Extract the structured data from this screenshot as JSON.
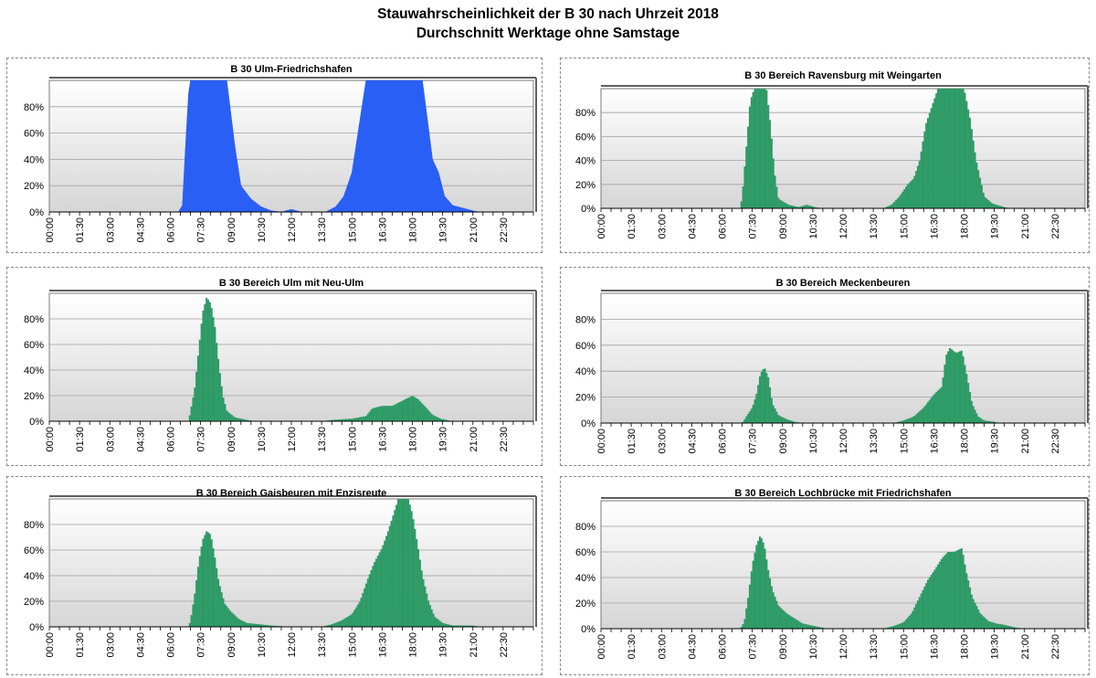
{
  "title": {
    "line1": "Stauwahrscheinlichkeit der B 30 nach Uhrzeit 2018",
    "line2": "Durchschnitt Werktage ohne Samstage"
  },
  "colors": {
    "blue": "#2a5ff5",
    "green": "#2e9b66",
    "plot_top": "#ffffff",
    "plot_bottom": "#d6d6d6",
    "grid": "#a0a0a0"
  },
  "chart_data": [
    {
      "type": "area",
      "title": "B 30 Ulm-Friedrichshafen",
      "color": "#2a5ff5",
      "x_ticks": [
        "00:00",
        "01:30",
        "03:00",
        "04:30",
        "06:00",
        "07:30",
        "09:00",
        "10:30",
        "12:00",
        "13:30",
        "15:00",
        "16:30",
        "18:00",
        "19:30",
        "21:00",
        "22:30"
      ],
      "y_ticks": [
        "0%",
        "20%",
        "40%",
        "60%",
        "80%"
      ],
      "ylim": [
        0,
        100
      ],
      "x_unit": "hours",
      "points": [
        [
          0,
          0
        ],
        [
          6.4,
          0
        ],
        [
          6.6,
          5
        ],
        [
          6.75,
          50
        ],
        [
          6.9,
          90
        ],
        [
          7.0,
          100
        ],
        [
          8.8,
          100
        ],
        [
          9.2,
          50
        ],
        [
          9.5,
          20
        ],
        [
          10.0,
          10
        ],
        [
          10.5,
          4
        ],
        [
          11.0,
          1
        ],
        [
          11.5,
          0
        ],
        [
          12.0,
          2
        ],
        [
          12.5,
          0
        ],
        [
          13.7,
          0
        ],
        [
          14.2,
          4
        ],
        [
          14.6,
          12
        ],
        [
          15.0,
          30
        ],
        [
          15.3,
          60
        ],
        [
          15.7,
          100
        ],
        [
          18.5,
          100
        ],
        [
          19.0,
          40
        ],
        [
          19.3,
          30
        ],
        [
          19.6,
          12
        ],
        [
          20.0,
          5
        ],
        [
          20.5,
          3
        ],
        [
          21.0,
          1
        ],
        [
          21.3,
          0
        ],
        [
          24,
          0
        ]
      ]
    },
    {
      "type": "bar",
      "title": "B 30 Bereich Ravensburg mit Weingarten",
      "color": "#2e9b66",
      "x_ticks": [
        "00:00",
        "01:30",
        "03:00",
        "04:30",
        "06:00",
        "07:30",
        "09:00",
        "10:30",
        "12:00",
        "13:30",
        "15:00",
        "16:30",
        "18:00",
        "19:30",
        "21:00",
        "22:30"
      ],
      "y_ticks": [
        "0%",
        "20%",
        "40%",
        "60%",
        "80%"
      ],
      "ylim": [
        0,
        100
      ],
      "x_unit": "hours",
      "points": [
        [
          0,
          0
        ],
        [
          6.9,
          0
        ],
        [
          7.0,
          10
        ],
        [
          7.2,
          50
        ],
        [
          7.4,
          90
        ],
        [
          7.6,
          100
        ],
        [
          8.2,
          100
        ],
        [
          8.4,
          70
        ],
        [
          8.6,
          30
        ],
        [
          8.8,
          8
        ],
        [
          9.3,
          3
        ],
        [
          9.8,
          1
        ],
        [
          10.2,
          3
        ],
        [
          10.6,
          1
        ],
        [
          11.0,
          0
        ],
        [
          14.0,
          0
        ],
        [
          14.4,
          3
        ],
        [
          14.8,
          10
        ],
        [
          15.2,
          20
        ],
        [
          15.5,
          25
        ],
        [
          15.8,
          40
        ],
        [
          16.1,
          70
        ],
        [
          16.4,
          85
        ],
        [
          16.7,
          100
        ],
        [
          18.0,
          100
        ],
        [
          18.3,
          75
        ],
        [
          18.6,
          40
        ],
        [
          19.0,
          10
        ],
        [
          19.4,
          4
        ],
        [
          20.0,
          1
        ],
        [
          20.3,
          0
        ],
        [
          24,
          0
        ]
      ]
    },
    {
      "type": "bar",
      "title": "B 30 Bereich Ulm mit Neu-Ulm",
      "color": "#2e9b66",
      "x_ticks": [
        "00:00",
        "01:30",
        "03:00",
        "04:30",
        "06:00",
        "07:30",
        "09:00",
        "10:30",
        "12:00",
        "13:30",
        "15:00",
        "16:30",
        "18:00",
        "19:30",
        "21:00",
        "22:30"
      ],
      "y_ticks": [
        "0%",
        "20%",
        "40%",
        "60%",
        "80%"
      ],
      "ylim": [
        0,
        100
      ],
      "x_unit": "hours",
      "points": [
        [
          0,
          0
        ],
        [
          6.9,
          0
        ],
        [
          7.0,
          8
        ],
        [
          7.2,
          25
        ],
        [
          7.4,
          55
        ],
        [
          7.6,
          85
        ],
        [
          7.8,
          97
        ],
        [
          8.0,
          92
        ],
        [
          8.2,
          75
        ],
        [
          8.4,
          45
        ],
        [
          8.6,
          20
        ],
        [
          8.8,
          8
        ],
        [
          9.2,
          3
        ],
        [
          9.8,
          1
        ],
        [
          10.2,
          0
        ],
        [
          13.5,
          0
        ],
        [
          14.0,
          1
        ],
        [
          15.0,
          2
        ],
        [
          15.7,
          4
        ],
        [
          16.0,
          10
        ],
        [
          16.5,
          12
        ],
        [
          17.0,
          12
        ],
        [
          17.5,
          16
        ],
        [
          18.0,
          20
        ],
        [
          18.3,
          17
        ],
        [
          18.6,
          12
        ],
        [
          19.0,
          5
        ],
        [
          19.4,
          2
        ],
        [
          20.0,
          0
        ],
        [
          24,
          0
        ]
      ]
    },
    {
      "type": "bar",
      "title": "B 30 Bereich Meckenbeuren",
      "color": "#2e9b66",
      "x_ticks": [
        "00:00",
        "01:30",
        "03:00",
        "04:30",
        "06:00",
        "07:30",
        "09:00",
        "10:30",
        "12:00",
        "13:30",
        "15:00",
        "16:30",
        "18:00",
        "19:30",
        "21:00",
        "22:30"
      ],
      "y_ticks": [
        "0%",
        "20%",
        "40%",
        "60%",
        "80%"
      ],
      "ylim": [
        0,
        100
      ],
      "x_unit": "hours",
      "points": [
        [
          0,
          0
        ],
        [
          7.0,
          0
        ],
        [
          7.2,
          5
        ],
        [
          7.5,
          12
        ],
        [
          7.7,
          22
        ],
        [
          7.9,
          38
        ],
        [
          8.1,
          43
        ],
        [
          8.3,
          35
        ],
        [
          8.5,
          15
        ],
        [
          8.8,
          6
        ],
        [
          9.2,
          3
        ],
        [
          9.6,
          1
        ],
        [
          10.0,
          0
        ],
        [
          14.5,
          0
        ],
        [
          15.0,
          2
        ],
        [
          15.5,
          5
        ],
        [
          16.0,
          12
        ],
        [
          16.5,
          22
        ],
        [
          16.9,
          28
        ],
        [
          17.1,
          52
        ],
        [
          17.3,
          58
        ],
        [
          17.6,
          54
        ],
        [
          17.9,
          56
        ],
        [
          18.1,
          40
        ],
        [
          18.4,
          15
        ],
        [
          18.7,
          5
        ],
        [
          19.0,
          2
        ],
        [
          19.5,
          1
        ],
        [
          19.8,
          0
        ],
        [
          24,
          0
        ]
      ]
    },
    {
      "type": "bar",
      "title": "B 30 Bereich Gaisbeuren mit Enzisreute",
      "color": "#2e9b66",
      "x_ticks": [
        "00:00",
        "01:30",
        "03:00",
        "04:30",
        "06:00",
        "07:30",
        "09:00",
        "10:30",
        "12:00",
        "13:30",
        "15:00",
        "16:30",
        "18:00",
        "19:30",
        "21:00",
        "22:30"
      ],
      "y_ticks": [
        "0%",
        "20%",
        "40%",
        "60%",
        "80%"
      ],
      "ylim": [
        0,
        100
      ],
      "x_unit": "hours",
      "points": [
        [
          0,
          0
        ],
        [
          6.9,
          0
        ],
        [
          7.0,
          5
        ],
        [
          7.2,
          25
        ],
        [
          7.4,
          50
        ],
        [
          7.6,
          68
        ],
        [
          7.8,
          75
        ],
        [
          8.0,
          72
        ],
        [
          8.2,
          55
        ],
        [
          8.4,
          35
        ],
        [
          8.7,
          18
        ],
        [
          9.0,
          12
        ],
        [
          9.4,
          6
        ],
        [
          9.8,
          3
        ],
        [
          10.4,
          2
        ],
        [
          11.0,
          1
        ],
        [
          12.0,
          0
        ],
        [
          13.5,
          0
        ],
        [
          14.0,
          2
        ],
        [
          14.5,
          5
        ],
        [
          15.0,
          10
        ],
        [
          15.4,
          20
        ],
        [
          15.8,
          38
        ],
        [
          16.1,
          50
        ],
        [
          16.5,
          62
        ],
        [
          16.8,
          75
        ],
        [
          17.1,
          90
        ],
        [
          17.3,
          100
        ],
        [
          17.8,
          100
        ],
        [
          18.0,
          88
        ],
        [
          18.3,
          60
        ],
        [
          18.5,
          40
        ],
        [
          18.8,
          20
        ],
        [
          19.1,
          8
        ],
        [
          19.5,
          3
        ],
        [
          20.0,
          1
        ],
        [
          21.0,
          1
        ],
        [
          21.4,
          0
        ],
        [
          24,
          0
        ]
      ]
    },
    {
      "type": "bar",
      "title": "B 30 Bereich Lochbrücke mit Friedrichshafen",
      "color": "#2e9b66",
      "x_ticks": [
        "00:00",
        "01:30",
        "03:00",
        "04:30",
        "06:00",
        "07:30",
        "09:00",
        "10:30",
        "12:00",
        "13:30",
        "15:00",
        "16:30",
        "18:00",
        "19:30",
        "21:00",
        "22:30"
      ],
      "y_ticks": [
        "0%",
        "20%",
        "40%",
        "60%",
        "80%"
      ],
      "ylim": [
        0,
        100
      ],
      "x_unit": "hours",
      "points": [
        [
          0,
          0
        ],
        [
          6.9,
          0
        ],
        [
          7.1,
          5
        ],
        [
          7.3,
          25
        ],
        [
          7.5,
          50
        ],
        [
          7.7,
          65
        ],
        [
          7.9,
          73
        ],
        [
          8.1,
          65
        ],
        [
          8.3,
          45
        ],
        [
          8.5,
          30
        ],
        [
          8.8,
          18
        ],
        [
          9.2,
          12
        ],
        [
          9.6,
          8
        ],
        [
          10.0,
          4
        ],
        [
          10.6,
          2
        ],
        [
          11.2,
          0
        ],
        [
          14.0,
          0
        ],
        [
          14.5,
          2
        ],
        [
          15.0,
          5
        ],
        [
          15.4,
          12
        ],
        [
          15.8,
          25
        ],
        [
          16.2,
          38
        ],
        [
          16.5,
          45
        ],
        [
          16.9,
          55
        ],
        [
          17.2,
          60
        ],
        [
          17.5,
          60
        ],
        [
          17.9,
          63
        ],
        [
          18.1,
          45
        ],
        [
          18.4,
          25
        ],
        [
          18.8,
          12
        ],
        [
          19.2,
          6
        ],
        [
          19.6,
          4
        ],
        [
          20.0,
          3
        ],
        [
          20.5,
          1
        ],
        [
          21.0,
          0
        ],
        [
          24,
          0
        ]
      ]
    }
  ]
}
